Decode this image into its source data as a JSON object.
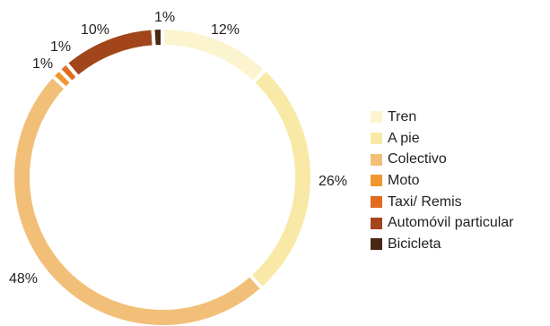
{
  "chart_data": {
    "type": "pie",
    "variant": "donut",
    "slices": [
      {
        "label": "Tren",
        "value": 12,
        "value_label": "12%",
        "color": "#fbf4cf"
      },
      {
        "label": "A pie",
        "value": 26,
        "value_label": "26%",
        "color": "#f8eaa6"
      },
      {
        "label": "Colectivo",
        "value": 48,
        "value_label": "48%",
        "color": "#f2bf78"
      },
      {
        "label": "Moto",
        "value": 1,
        "value_label": "1%",
        "color": "#f0982f"
      },
      {
        "label": "Taxi/ Remis",
        "value": 1,
        "value_label": "1%",
        "color": "#e06d20"
      },
      {
        "label": "Automóvil particular",
        "value": 10,
        "value_label": "10%",
        "color": "#a2451b"
      },
      {
        "label": "Bicicleta",
        "value": 1,
        "value_label": "1%",
        "color": "#4a2714"
      }
    ],
    "legend_position": "right"
  }
}
